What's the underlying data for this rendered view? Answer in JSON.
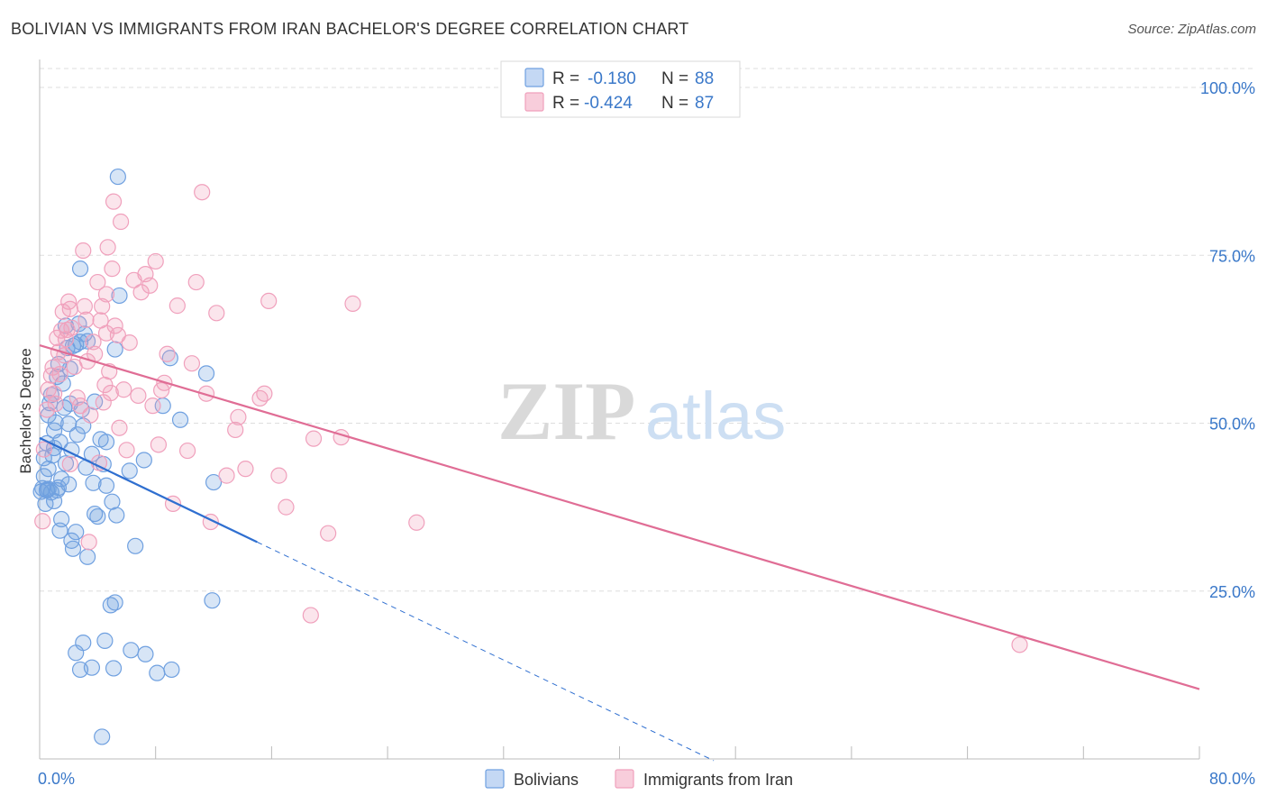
{
  "title": "BOLIVIAN VS IMMIGRANTS FROM IRAN BACHELOR'S DEGREE CORRELATION CHART",
  "source": "Source: ZipAtlas.com",
  "watermark": {
    "zip": "ZIP",
    "atlas": "atlas"
  },
  "legend_top": [
    {
      "r_label": "R =",
      "r_value": "-0.180",
      "n_label": "N =",
      "n_value": "88",
      "color": "#6fa0e0"
    },
    {
      "r_label": "R =",
      "r_value": "-0.424",
      "n_label": "N =",
      "n_value": "87",
      "color": "#f0a0bc"
    }
  ],
  "legend_bottom": [
    {
      "label": "Bolivians",
      "color": "#6fa0e0"
    },
    {
      "label": "Immigrants from Iran",
      "color": "#f0a0bc"
    }
  ],
  "chart_data": {
    "type": "scatter",
    "ylabel": "Bachelor's Degree",
    "xlim": [
      0,
      80
    ],
    "ylim": [
      0,
      100
    ],
    "x_tick_labels": [
      {
        "value": 0,
        "label": "0.0%"
      },
      {
        "value": 80,
        "label": "80.0%"
      }
    ],
    "y_tick_labels": [
      {
        "value": 25,
        "label": "25.0%"
      },
      {
        "value": 50,
        "label": "50.0%"
      },
      {
        "value": 75,
        "label": "75.0%"
      },
      {
        "value": 100,
        "label": "100.0%"
      }
    ],
    "grid": true,
    "legend_position": "top-center",
    "series": [
      {
        "name": "Bolivians",
        "color": "#6fa0e0",
        "trend_color": "#2f6fd0",
        "r": -0.18,
        "n": 88,
        "trend": {
          "x0": 0,
          "y0": 47.8,
          "x1": 15,
          "y1": 32.3,
          "dash_to_x": 46.5
        },
        "points": [
          [
            0.1,
            39.8
          ],
          [
            0.2,
            40.3
          ],
          [
            0.3,
            42.1
          ],
          [
            0.4,
            38.0
          ],
          [
            0.5,
            40.1
          ],
          [
            0.6,
            43.2
          ],
          [
            0.5,
            47.0
          ],
          [
            0.6,
            51.2
          ],
          [
            0.7,
            53.0
          ],
          [
            0.8,
            54.2
          ],
          [
            0.9,
            45.2
          ],
          [
            1.0,
            46.3
          ],
          [
            1.0,
            48.9
          ],
          [
            1.1,
            50.1
          ],
          [
            1.2,
            56.9
          ],
          [
            1.3,
            58.8
          ],
          [
            1.4,
            47.2
          ],
          [
            1.5,
            41.7
          ],
          [
            1.5,
            35.7
          ],
          [
            1.4,
            34.0
          ],
          [
            1.6,
            55.9
          ],
          [
            1.7,
            52.3
          ],
          [
            1.8,
            44.0
          ],
          [
            1.9,
            61.2
          ],
          [
            2.0,
            49.9
          ],
          [
            2.1,
            58.1
          ],
          [
            2.2,
            46.0
          ],
          [
            2.3,
            61.5
          ],
          [
            2.2,
            32.5
          ],
          [
            2.3,
            31.3
          ],
          [
            2.5,
            33.8
          ],
          [
            2.6,
            48.3
          ],
          [
            2.7,
            64.8
          ],
          [
            2.8,
            62.1
          ],
          [
            2.9,
            52.0
          ],
          [
            3.1,
            63.3
          ],
          [
            3.2,
            43.4
          ],
          [
            3.3,
            30.1
          ],
          [
            3.6,
            45.4
          ],
          [
            3.7,
            41.1
          ],
          [
            3.8,
            53.2
          ],
          [
            4.0,
            36.1
          ],
          [
            4.2,
            47.6
          ],
          [
            4.4,
            43.9
          ],
          [
            4.6,
            40.7
          ],
          [
            5.0,
            38.3
          ],
          [
            5.3,
            36.3
          ],
          [
            5.2,
            61.0
          ],
          [
            5.5,
            69.0
          ],
          [
            5.4,
            86.7
          ],
          [
            6.2,
            42.9
          ],
          [
            6.6,
            31.7
          ],
          [
            7.2,
            44.5
          ],
          [
            8.5,
            52.6
          ],
          [
            9.0,
            59.7
          ],
          [
            9.7,
            50.5
          ],
          [
            11.5,
            57.4
          ],
          [
            12.0,
            41.2
          ],
          [
            2.8,
            73.0
          ],
          [
            2.5,
            61.7
          ],
          [
            2.1,
            52.9
          ],
          [
            0.6,
            40.2
          ],
          [
            0.8,
            39.7
          ],
          [
            1.0,
            38.4
          ],
          [
            3.0,
            49.6
          ],
          [
            4.6,
            47.2
          ],
          [
            1.8,
            64.5
          ],
          [
            3.3,
            62.2
          ],
          [
            4.9,
            22.9
          ],
          [
            5.2,
            23.3
          ],
          [
            11.9,
            23.6
          ],
          [
            2.5,
            15.8
          ],
          [
            3.0,
            17.3
          ],
          [
            4.5,
            17.6
          ],
          [
            6.3,
            16.2
          ],
          [
            7.3,
            15.6
          ],
          [
            2.8,
            13.3
          ],
          [
            3.6,
            13.6
          ],
          [
            5.1,
            13.5
          ],
          [
            8.1,
            12.8
          ],
          [
            9.1,
            13.3
          ],
          [
            4.3,
            3.3
          ],
          [
            1.3,
            40.4
          ],
          [
            2.0,
            40.9
          ],
          [
            0.3,
            44.8
          ],
          [
            3.8,
            36.5
          ],
          [
            0.5,
            40.0
          ],
          [
            1.2,
            40.0
          ]
        ]
      },
      {
        "name": "Immigrants from Iran",
        "color": "#f0a0bc",
        "trend_color": "#e06d95",
        "r": -0.424,
        "n": 87,
        "trend": {
          "x0": 0,
          "y0": 61.6,
          "x1": 80,
          "y1": 10.4
        },
        "points": [
          [
            0.2,
            35.4
          ],
          [
            0.3,
            46.1
          ],
          [
            0.5,
            52.0
          ],
          [
            0.6,
            55.0
          ],
          [
            0.8,
            57.1
          ],
          [
            0.9,
            58.3
          ],
          [
            1.0,
            54.4
          ],
          [
            1.1,
            52.9
          ],
          [
            1.2,
            62.7
          ],
          [
            1.3,
            60.6
          ],
          [
            1.4,
            57.3
          ],
          [
            1.5,
            63.8
          ],
          [
            1.6,
            66.6
          ],
          [
            1.7,
            60.1
          ],
          [
            1.8,
            62.5
          ],
          [
            1.9,
            63.9
          ],
          [
            2.0,
            68.1
          ],
          [
            2.1,
            67.0
          ],
          [
            2.2,
            64.2
          ],
          [
            2.4,
            58.4
          ],
          [
            2.6,
            53.8
          ],
          [
            2.8,
            52.6
          ],
          [
            3.0,
            75.7
          ],
          [
            3.2,
            65.4
          ],
          [
            3.3,
            59.2
          ],
          [
            3.5,
            51.2
          ],
          [
            3.7,
            62.1
          ],
          [
            3.8,
            60.3
          ],
          [
            4.0,
            71.0
          ],
          [
            4.2,
            65.3
          ],
          [
            4.3,
            67.4
          ],
          [
            4.4,
            53.1
          ],
          [
            4.5,
            55.7
          ],
          [
            4.6,
            69.2
          ],
          [
            4.7,
            76.2
          ],
          [
            4.8,
            57.7
          ],
          [
            4.9,
            54.5
          ],
          [
            5.0,
            73.0
          ],
          [
            5.1,
            83.0
          ],
          [
            5.2,
            64.5
          ],
          [
            5.4,
            63.1
          ],
          [
            5.5,
            49.3
          ],
          [
            5.6,
            80.0
          ],
          [
            5.8,
            55.0
          ],
          [
            6.0,
            46.0
          ],
          [
            6.2,
            62.0
          ],
          [
            6.5,
            71.3
          ],
          [
            6.8,
            54.1
          ],
          [
            7.0,
            69.5
          ],
          [
            7.3,
            72.2
          ],
          [
            7.6,
            70.5
          ],
          [
            7.8,
            52.6
          ],
          [
            8.0,
            74.1
          ],
          [
            8.2,
            46.8
          ],
          [
            8.4,
            54.9
          ],
          [
            8.6,
            56.0
          ],
          [
            8.8,
            60.3
          ],
          [
            9.2,
            38.0
          ],
          [
            9.5,
            67.5
          ],
          [
            10.2,
            45.9
          ],
          [
            10.5,
            58.9
          ],
          [
            10.8,
            71.0
          ],
          [
            11.2,
            84.4
          ],
          [
            11.5,
            54.4
          ],
          [
            11.8,
            35.3
          ],
          [
            12.2,
            66.4
          ],
          [
            12.9,
            42.2
          ],
          [
            13.5,
            49.0
          ],
          [
            13.7,
            50.9
          ],
          [
            14.2,
            43.2
          ],
          [
            15.2,
            53.7
          ],
          [
            15.5,
            54.4
          ],
          [
            15.8,
            68.2
          ],
          [
            16.5,
            42.2
          ],
          [
            17.0,
            37.5
          ],
          [
            18.7,
            21.4
          ],
          [
            18.9,
            47.7
          ],
          [
            19.9,
            33.6
          ],
          [
            20.8,
            47.9
          ],
          [
            21.6,
            67.8
          ],
          [
            26.0,
            35.2
          ],
          [
            67.6,
            17.0
          ],
          [
            2.1,
            43.9
          ],
          [
            3.4,
            32.3
          ],
          [
            4.1,
            44.1
          ],
          [
            4.6,
            63.4
          ],
          [
            3.1,
            67.4
          ]
        ]
      }
    ]
  }
}
